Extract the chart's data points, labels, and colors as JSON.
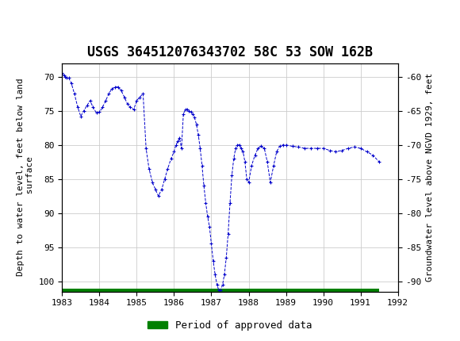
{
  "title": "USGS 364512076343702 58C 53 SOW 162B",
  "ylabel_left": "Depth to water level, feet below land\n surface",
  "ylabel_right": "Groundwater level above NGVD 1929, feet",
  "ylim_left": [
    101.5,
    68.0
  ],
  "ylim_right": [
    -91.5,
    -58.0
  ],
  "xlim": [
    1983.0,
    1992.0
  ],
  "xticks": [
    1983,
    1984,
    1985,
    1986,
    1987,
    1988,
    1989,
    1990,
    1991,
    1992
  ],
  "yticks_left": [
    70,
    75,
    80,
    85,
    90,
    95,
    100
  ],
  "yticks_right": [
    -60,
    -65,
    -70,
    -75,
    -80,
    -85,
    -90
  ],
  "line_color": "#0000CC",
  "line_style": "--",
  "marker": "+",
  "marker_size": 3,
  "approved_bar_color": "#008000",
  "legend_label": "Period of approved data",
  "header_bg": "#1a6b3a",
  "background_color": "#ffffff",
  "grid_color": "#cccccc",
  "title_fontsize": 12,
  "label_fontsize": 8,
  "tick_fontsize": 8
}
